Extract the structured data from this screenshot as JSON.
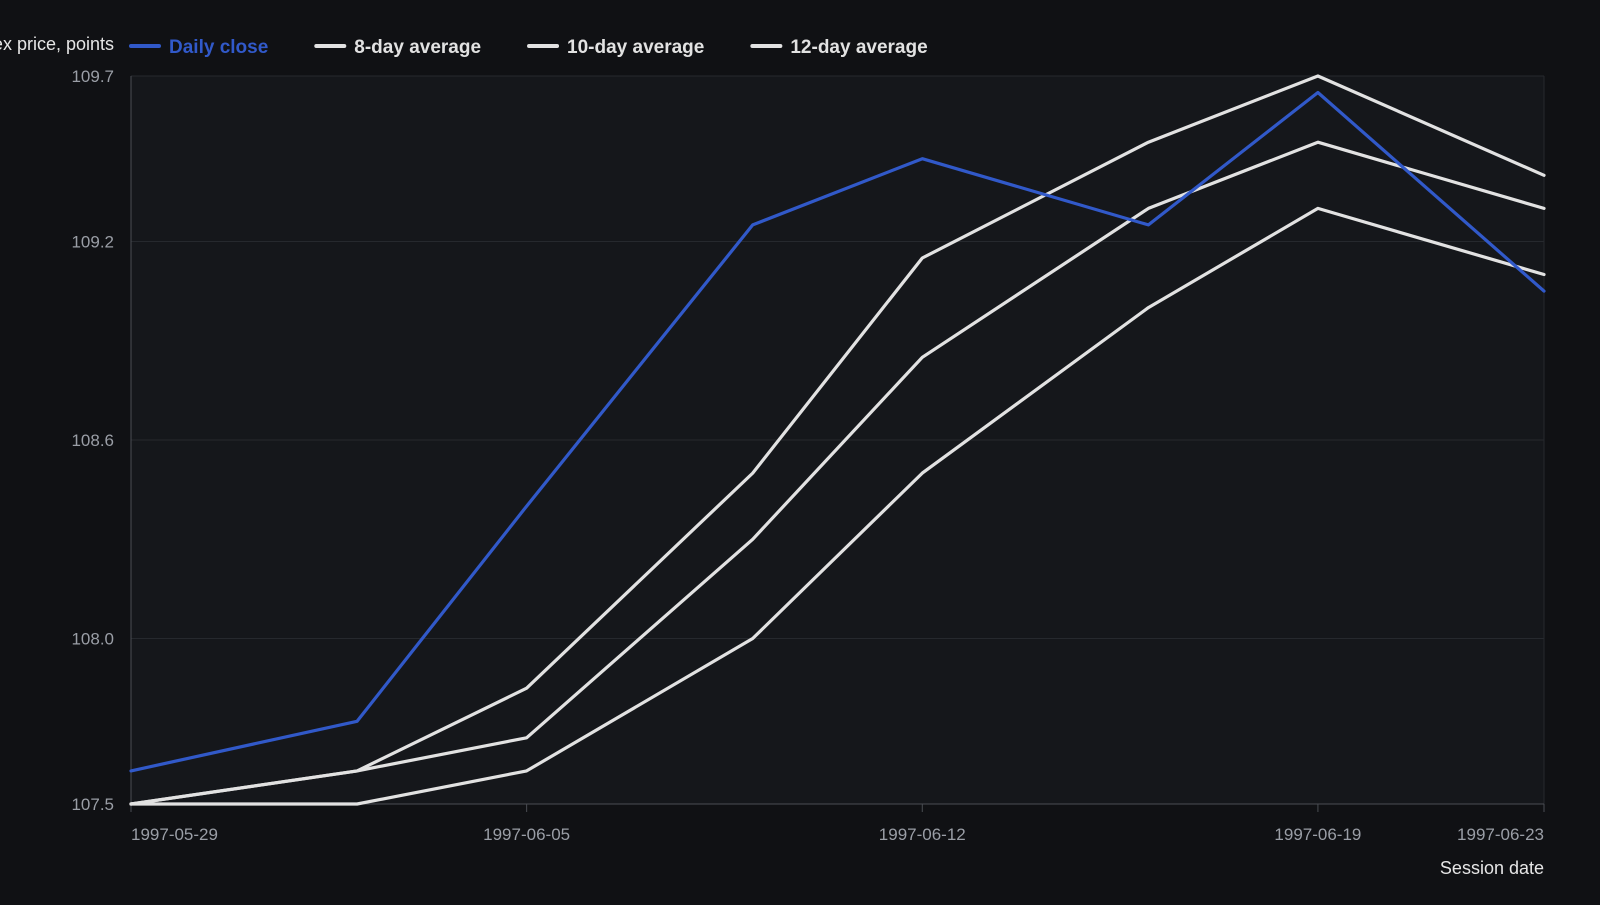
{
  "chart_data": {
    "type": "line",
    "title": "",
    "ylabel": "Index price, points",
    "xlabel": "Session date",
    "ylim": [
      107.5,
      109.7
    ],
    "yticks": [
      107.5,
      108.0,
      108.6,
      109.2,
      109.7
    ],
    "xlim": [
      "1997-05-29",
      "1997-06-23"
    ],
    "xticks": [
      "1997-05-29",
      "1997-06-05",
      "1997-06-12",
      "1997-06-19",
      "1997-06-23"
    ],
    "x": [
      "1997-05-29",
      "1997-06-02",
      "1997-06-05",
      "1997-06-09",
      "1997-06-12",
      "1997-06-16",
      "1997-06-19",
      "1997-06-23"
    ],
    "grid": true,
    "legend_position": "top-left",
    "series": [
      {
        "name": "Daily close",
        "color": "#3159c9",
        "values": [
          107.6,
          107.75,
          108.4,
          109.25,
          109.45,
          109.25,
          109.65,
          109.05
        ]
      },
      {
        "name": "8-day average",
        "color": "#e2e2e2",
        "values": [
          107.5,
          107.6,
          107.85,
          108.5,
          109.15,
          109.5,
          109.7,
          109.4
        ]
      },
      {
        "name": "10-day average",
        "color": "#e2e2e2",
        "values": [
          107.5,
          107.6,
          107.7,
          108.3,
          108.85,
          109.3,
          109.5,
          109.3
        ]
      },
      {
        "name": "12-day average",
        "color": "#e2e2e2",
        "values": [
          107.5,
          107.5,
          107.6,
          108.0,
          108.5,
          109.0,
          109.3,
          109.1
        ]
      }
    ]
  },
  "colors": {
    "background": "#101114",
    "plot_background": "#15171b",
    "grid": "#26292e",
    "axis": "#4a4d53"
  }
}
